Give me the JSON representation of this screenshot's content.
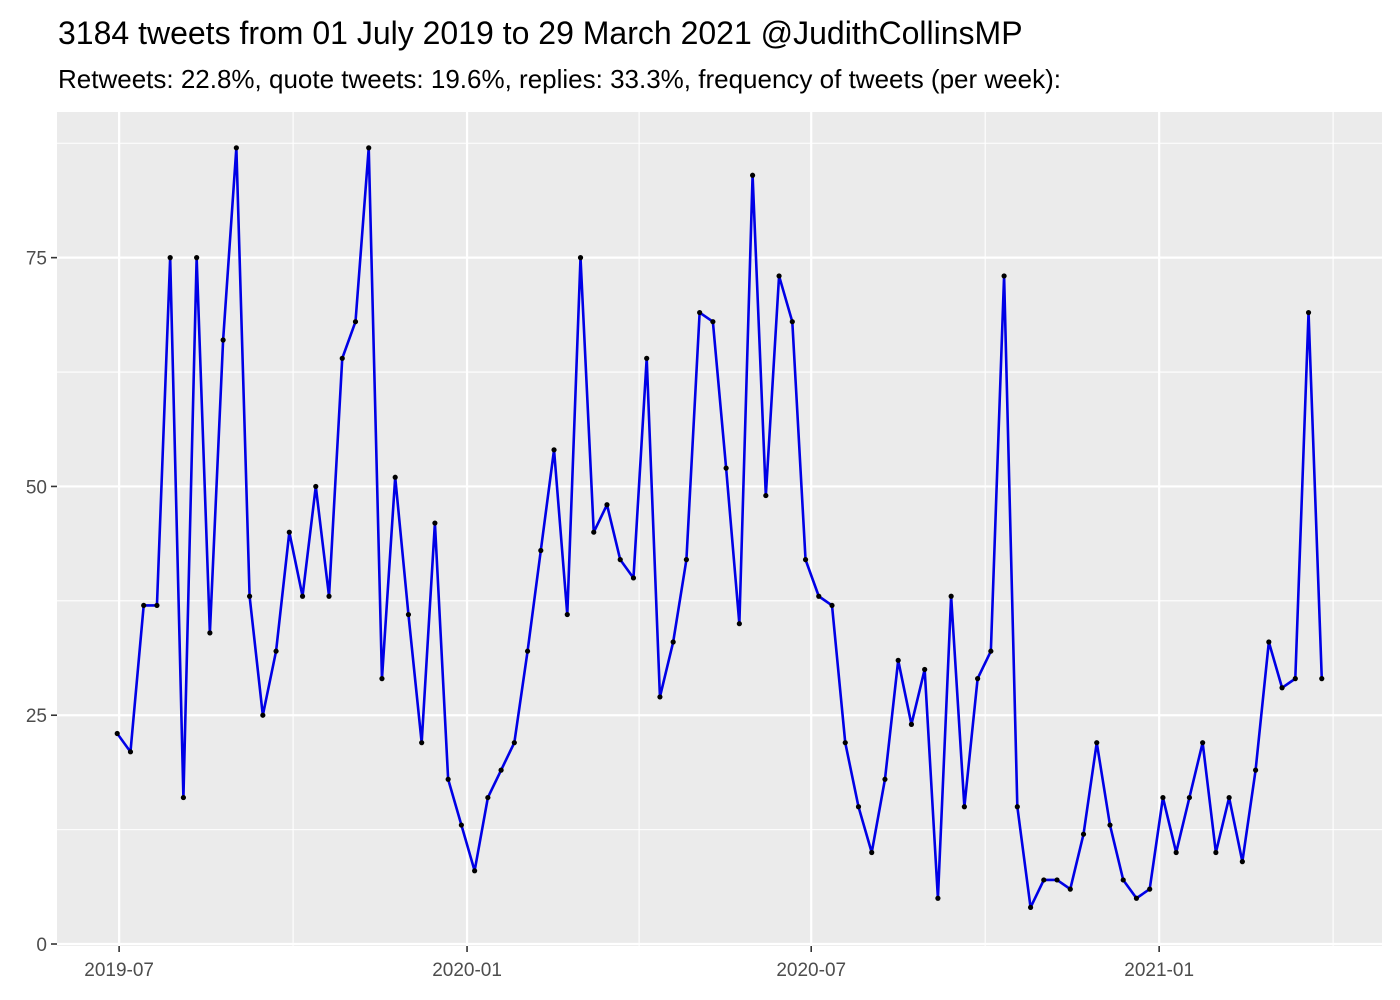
{
  "chart_data": {
    "type": "line",
    "title": "3184 tweets from 01 July 2019 to 29 March 2021 @JudithCollinsMP",
    "subtitle": "Retweets: 22.8%, quote tweets: 19.6%, replies: 33.3%, frequency of tweets (per week):",
    "xlabel": "",
    "ylabel": "",
    "x_start": "2019-06-30",
    "x_step_days": 7,
    "x_ticks": [
      {
        "date": "2019-07-01",
        "label": "2019-07"
      },
      {
        "date": "2020-01-01",
        "label": "2020-01"
      },
      {
        "date": "2020-07-01",
        "label": "2020-07"
      },
      {
        "date": "2021-01-01",
        "label": "2021-01"
      }
    ],
    "y_ticks": [
      0,
      25,
      50,
      75
    ],
    "ylim": [
      0,
      87
    ],
    "grid": true,
    "series": [
      {
        "name": "",
        "values": [
          23,
          21,
          37,
          37,
          75,
          16,
          75,
          34,
          66,
          87,
          38,
          25,
          32,
          45,
          38,
          50,
          38,
          64,
          68,
          87,
          29,
          51,
          36,
          22,
          46,
          18,
          13,
          8,
          16,
          19,
          22,
          32,
          43,
          54,
          36,
          75,
          45,
          48,
          42,
          40,
          64,
          27,
          33,
          42,
          69,
          68,
          52,
          35,
          84,
          49,
          73,
          68,
          42,
          38,
          37,
          22,
          15,
          10,
          18,
          31,
          24,
          30,
          5,
          38,
          15,
          29,
          32,
          73,
          15,
          4,
          7,
          7,
          6,
          12,
          22,
          13,
          7,
          5,
          6,
          16,
          10,
          16,
          22,
          10,
          16,
          9,
          19,
          33,
          28,
          29,
          69,
          29
        ]
      }
    ],
    "colors": {
      "line": "#0000e6",
      "point": "#000000",
      "panel": "#ebebeb",
      "grid": "#ffffff"
    }
  }
}
